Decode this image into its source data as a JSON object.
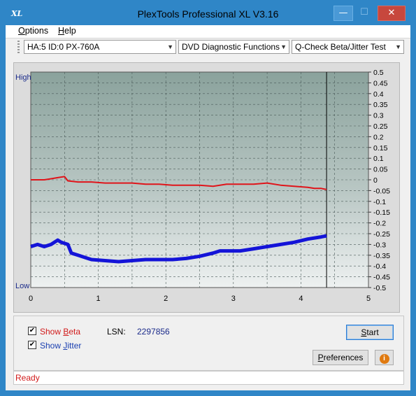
{
  "window": {
    "app_icon_text": "XL",
    "title": "PlexTools Professional XL V3.16",
    "minimize_glyph": "—",
    "maximize_glyph": "☐",
    "close_glyph": "✕"
  },
  "menubar": {
    "items": [
      {
        "label": "Options",
        "mnemonic": "O"
      },
      {
        "label": "Help",
        "mnemonic": "H"
      }
    ]
  },
  "toolbar": {
    "drive_select": "HA:5 ID:0  PX-760A",
    "function_select": "DVD Diagnostic Functions",
    "test_select": "Q-Check Beta/Jitter Test"
  },
  "chart_data": {
    "type": "line",
    "left_axis_labels": {
      "top": "High",
      "bottom": "Low"
    },
    "x_ticks": [
      "0",
      "1",
      "2",
      "3",
      "4",
      "5"
    ],
    "xlim": [
      0,
      5
    ],
    "right_ticks": [
      "0.5",
      "0.45",
      "0.4",
      "0.35",
      "0.3",
      "0.25",
      "0.2",
      "0.15",
      "0.1",
      "0.05",
      "0",
      "-0.05",
      "-0.1",
      "-0.15",
      "-0.2",
      "-0.25",
      "-0.3",
      "-0.35",
      "-0.4",
      "-0.45",
      "-0.5"
    ],
    "ylim": [
      -0.5,
      0.5
    ],
    "grid": true,
    "end_marker_x": 4.38,
    "series": [
      {
        "color": "#e0141a",
        "x": [
          0,
          0.1,
          0.2,
          0.3,
          0.4,
          0.5,
          0.55,
          0.7,
          0.9,
          1.1,
          1.3,
          1.5,
          1.7,
          1.9,
          2.1,
          2.3,
          2.5,
          2.7,
          2.8,
          2.9,
          3.1,
          3.3,
          3.5,
          3.7,
          3.9,
          4.1,
          4.2,
          4.3,
          4.38
        ],
        "y": [
          0.0,
          0.0,
          0.0,
          0.005,
          0.01,
          0.015,
          -0.005,
          -0.01,
          -0.01,
          -0.015,
          -0.015,
          -0.015,
          -0.02,
          -0.02,
          -0.025,
          -0.025,
          -0.025,
          -0.03,
          -0.025,
          -0.02,
          -0.02,
          -0.02,
          -0.015,
          -0.025,
          -0.03,
          -0.035,
          -0.04,
          -0.04,
          -0.045
        ]
      },
      {
        "color": "#1414d8",
        "x": [
          0,
          0.1,
          0.2,
          0.3,
          0.4,
          0.45,
          0.55,
          0.6,
          0.7,
          0.9,
          1.1,
          1.3,
          1.5,
          1.7,
          1.9,
          2.1,
          2.3,
          2.5,
          2.7,
          2.8,
          2.9,
          3.1,
          3.3,
          3.5,
          3.7,
          3.9,
          4.1,
          4.3,
          4.38
        ],
        "y": [
          -0.31,
          -0.3,
          -0.31,
          -0.3,
          -0.28,
          -0.29,
          -0.3,
          -0.34,
          -0.35,
          -0.37,
          -0.375,
          -0.38,
          -0.375,
          -0.37,
          -0.37,
          -0.37,
          -0.365,
          -0.355,
          -0.34,
          -0.33,
          -0.33,
          -0.33,
          -0.32,
          -0.31,
          -0.3,
          -0.29,
          -0.275,
          -0.265,
          -0.26
        ]
      }
    ]
  },
  "options": {
    "show_beta_label": "Show Beta",
    "show_beta_checked": true,
    "show_jitter_label": "Show Jitter",
    "show_jitter_checked": true,
    "lsn_label": "LSN:",
    "lsn_value": "2297856",
    "start_button": "Start",
    "preferences_button": "Preferences",
    "info_icon_glyph": "i"
  },
  "status": {
    "text": "Ready"
  },
  "colors": {
    "beta_label": "#d11a1a",
    "jitter_label": "#1a3fb0",
    "status_text": "#d11a1a"
  }
}
